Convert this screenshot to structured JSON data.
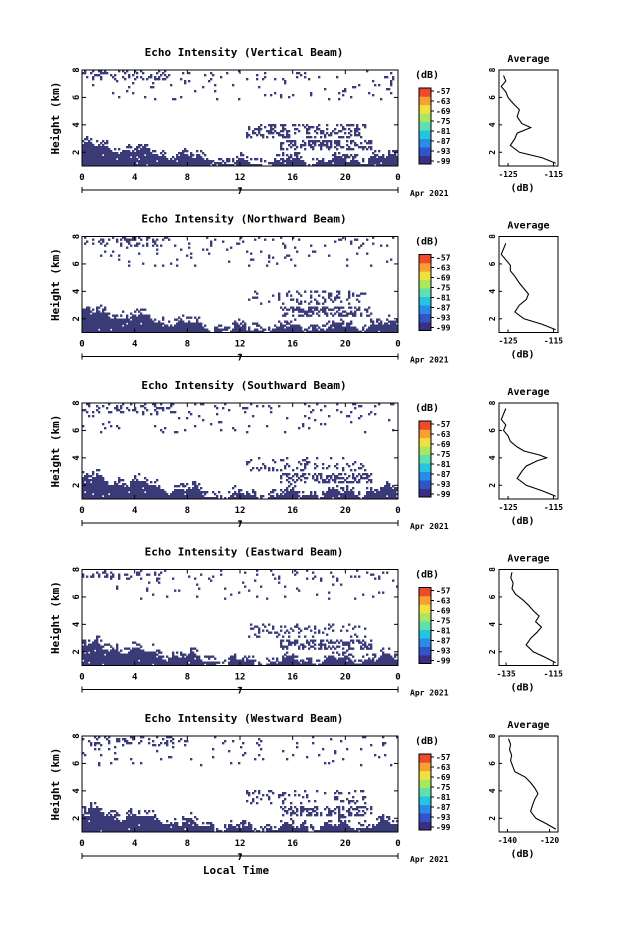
{
  "figure": {
    "xlabel_bottom": "Local Time",
    "date_label": "Apr 2021",
    "cbar_unit": "(dB)",
    "colors": {
      "echo": "#3b3b78",
      "colorbar": [
        "#3a2f84",
        "#2f55c8",
        "#2a8be8",
        "#25c5e0",
        "#5ee0b0",
        "#a8e860",
        "#f0e040",
        "#f8a030",
        "#f04a2a"
      ]
    }
  },
  "chart_data": [
    {
      "type": "heatmap",
      "title": "Echo Intensity (Vertical Beam)",
      "ylabel": "Height (km)",
      "xlim": [
        0,
        24
      ],
      "ylim": [
        1,
        8
      ],
      "x_ticks": [
        "0",
        "4",
        "8",
        "12",
        "16",
        "20",
        "0"
      ],
      "x_ticks_values": [
        0,
        4,
        8,
        12,
        16,
        20,
        24
      ],
      "y_ticks": [
        "2",
        "4",
        "6",
        "8"
      ],
      "y_ticks_values": [
        2,
        4,
        6,
        8
      ],
      "day_marker": "7",
      "colorbar_ticks": [
        "-57",
        "-63",
        "-69",
        "-75",
        "-81",
        "-87",
        "-93",
        "-99"
      ],
      "average_profile": {
        "title": "Average",
        "xlabel": "(dB)",
        "x_ticks": [
          "-125",
          "-115"
        ],
        "x_ticks_values": [
          -125,
          -115
        ],
        "xlim": [
          -127,
          -114
        ],
        "ylim": [
          1,
          8
        ],
        "y_ticks": [
          "2",
          "4",
          "6",
          "8"
        ],
        "heights": [
          1.2,
          1.6,
          2.0,
          2.5,
          3.0,
          3.4,
          3.8,
          4.1,
          4.6,
          5.1,
          5.6,
          6.0,
          6.4,
          6.8,
          7.2,
          7.6
        ],
        "values": [
          -114.5,
          -117.5,
          -122.5,
          -124.5,
          -123.5,
          -123.0,
          -120.0,
          -122.0,
          -123.0,
          -122.5,
          -124.0,
          -125.0,
          -125.5,
          -126.5,
          -125.5,
          -126.0
        ]
      }
    },
    {
      "type": "heatmap",
      "title": "Echo Intensity (Northward Beam)",
      "ylabel": "Height (km)",
      "xlim": [
        0,
        24
      ],
      "ylim": [
        1,
        8
      ],
      "x_ticks": [
        "0",
        "4",
        "8",
        "12",
        "16",
        "20",
        "0"
      ],
      "x_ticks_values": [
        0,
        4,
        8,
        12,
        16,
        20,
        24
      ],
      "y_ticks": [
        "2",
        "4",
        "6",
        "8"
      ],
      "y_ticks_values": [
        2,
        4,
        6,
        8
      ],
      "day_marker": "7",
      "colorbar_ticks": [
        "-57",
        "-63",
        "-69",
        "-75",
        "-81",
        "-87",
        "-93",
        "-99"
      ],
      "average_profile": {
        "title": "Average",
        "xlabel": "(dB)",
        "x_ticks": [
          "-125",
          "-115"
        ],
        "x_ticks_values": [
          -125,
          -115
        ],
        "xlim": [
          -127,
          -114
        ],
        "ylim": [
          1,
          8
        ],
        "y_ticks": [
          "2",
          "4",
          "6",
          "8"
        ],
        "heights": [
          1.2,
          1.6,
          2.0,
          2.5,
          3.0,
          3.4,
          3.8,
          4.2,
          4.6,
          5.1,
          5.5,
          5.9,
          6.3,
          6.7,
          7.1,
          7.5
        ],
        "values": [
          -114.5,
          -117.5,
          -121.5,
          -123.5,
          -122.5,
          -121.0,
          -120.5,
          -121.5,
          -122.5,
          -123.5,
          -124.5,
          -124.5,
          -125.5,
          -126.5,
          -126.0,
          -125.5
        ]
      }
    },
    {
      "type": "heatmap",
      "title": "Echo Intensity (Southward Beam)",
      "ylabel": "Height (km)",
      "xlim": [
        0,
        24
      ],
      "ylim": [
        1,
        8
      ],
      "x_ticks": [
        "0",
        "4",
        "8",
        "12",
        "16",
        "20",
        "0"
      ],
      "x_ticks_values": [
        0,
        4,
        8,
        12,
        16,
        20,
        24
      ],
      "y_ticks": [
        "2",
        "4",
        "6",
        "8"
      ],
      "y_ticks_values": [
        2,
        4,
        6,
        8
      ],
      "day_marker": "7",
      "colorbar_ticks": [
        "-57",
        "-63",
        "-69",
        "-75",
        "-81",
        "-87",
        "-93",
        "-99"
      ],
      "average_profile": {
        "title": "Average",
        "xlabel": "(dB)",
        "x_ticks": [
          "-125",
          "-115"
        ],
        "x_ticks_values": [
          -125,
          -115
        ],
        "xlim": [
          -127,
          -114
        ],
        "ylim": [
          1,
          8
        ],
        "y_ticks": [
          "2",
          "4",
          "6",
          "8"
        ],
        "heights": [
          1.2,
          1.6,
          2.0,
          2.5,
          3.0,
          3.4,
          3.8,
          4.0,
          4.2,
          4.5,
          4.8,
          5.2,
          5.6,
          6.0,
          6.4,
          6.8,
          7.2,
          7.6
        ],
        "values": [
          -114.5,
          -117.5,
          -121.0,
          -123.0,
          -122.0,
          -121.0,
          -118.5,
          -116.5,
          -118.0,
          -121.5,
          -123.0,
          -124.5,
          -125.0,
          -126.0,
          -125.5,
          -126.5,
          -126.0,
          -125.5
        ]
      }
    },
    {
      "type": "heatmap",
      "title": "Echo Intensity (Eastward Beam)",
      "ylabel": "Height (km)",
      "xlim": [
        0,
        24
      ],
      "ylim": [
        1,
        8
      ],
      "x_ticks": [
        "0",
        "4",
        "8",
        "12",
        "16",
        "20",
        "0"
      ],
      "x_ticks_values": [
        0,
        4,
        8,
        12,
        16,
        20,
        24
      ],
      "y_ticks": [
        "2",
        "4",
        "6",
        "8"
      ],
      "y_ticks_values": [
        2,
        4,
        6,
        8
      ],
      "day_marker": "7",
      "colorbar_ticks": [
        "-57",
        "-63",
        "-69",
        "-75",
        "-81",
        "-87",
        "-93",
        "-99"
      ],
      "average_profile": {
        "title": "Average",
        "xlabel": "(dB)",
        "x_ticks": [
          "-135",
          "-115"
        ],
        "x_ticks_values": [
          -135,
          -115
        ],
        "xlim": [
          -138,
          -113
        ],
        "ylim": [
          1,
          8
        ],
        "y_ticks": [
          "2",
          "4",
          "6",
          "8"
        ],
        "heights": [
          1.2,
          1.6,
          2.0,
          2.5,
          3.0,
          3.4,
          3.8,
          4.2,
          4.6,
          5.0,
          5.4,
          5.8,
          6.2,
          6.6,
          7.0,
          7.4,
          7.8
        ],
        "values": [
          -114.0,
          -118.5,
          -123.5,
          -126.5,
          -124.5,
          -122.0,
          -120.0,
          -122.5,
          -121.0,
          -123.5,
          -125.5,
          -128.0,
          -131.0,
          -132.5,
          -132.0,
          -133.0,
          -132.5
        ]
      }
    },
    {
      "type": "heatmap",
      "title": "Echo Intensity (Westward Beam)",
      "ylabel": "Height (km)",
      "xlim": [
        0,
        24
      ],
      "ylim": [
        1,
        8
      ],
      "x_ticks": [
        "0",
        "4",
        "8",
        "12",
        "16",
        "20",
        "0"
      ],
      "x_ticks_values": [
        0,
        4,
        8,
        12,
        16,
        20,
        24
      ],
      "y_ticks": [
        "2",
        "4",
        "6",
        "8"
      ],
      "y_ticks_values": [
        2,
        4,
        6,
        8
      ],
      "day_marker": "7",
      "colorbar_ticks": [
        "-57",
        "-63",
        "-69",
        "-75",
        "-81",
        "-87",
        "-93",
        "-99"
      ],
      "average_profile": {
        "title": "Average",
        "xlabel": "(dB)",
        "x_ticks": [
          "-140",
          "-120"
        ],
        "x_ticks_values": [
          -140,
          -120
        ],
        "xlim": [
          -144,
          -116
        ],
        "ylim": [
          1,
          8
        ],
        "y_ticks": [
          "2",
          "4",
          "6",
          "8"
        ],
        "heights": [
          1.2,
          1.6,
          2.0,
          2.5,
          3.0,
          3.4,
          3.8,
          4.2,
          4.6,
          5.0,
          5.4,
          5.8,
          6.2,
          6.6,
          7.0,
          7.4,
          7.8
        ],
        "values": [
          -117.0,
          -121.5,
          -126.5,
          -129.0,
          -128.0,
          -127.0,
          -125.5,
          -127.0,
          -129.0,
          -131.5,
          -136.5,
          -137.5,
          -138.5,
          -138.0,
          -139.0,
          -138.5,
          -139.5
        ]
      }
    }
  ]
}
